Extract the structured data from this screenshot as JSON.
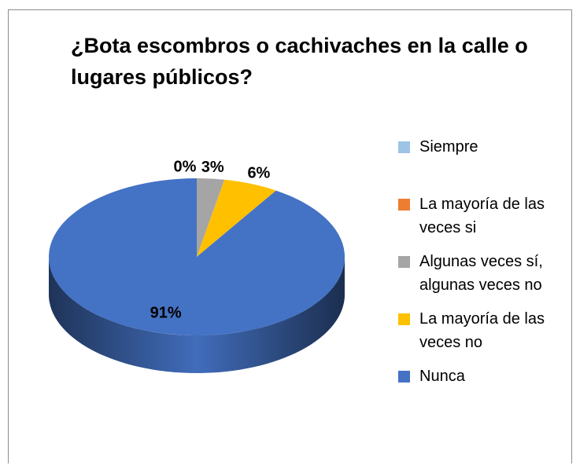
{
  "chart_data": {
    "type": "pie3d",
    "title": "¿Bota escombros o cachivaches en la calle o lugares públicos?",
    "categories": [
      "Siempre",
      "La mayoría de las veces si",
      "Algunas veces sí, algunas veces no",
      "La mayoría de las veces no",
      "Nunca"
    ],
    "values": [
      0,
      0,
      3,
      6,
      91
    ],
    "value_labels": [
      "0%",
      null,
      "3%",
      "6%",
      "91%"
    ],
    "colors": [
      "#9dc3e6",
      "#ed7d31",
      "#a5a5a5",
      "#ffc000",
      "#4472c4"
    ],
    "legend": "right"
  }
}
